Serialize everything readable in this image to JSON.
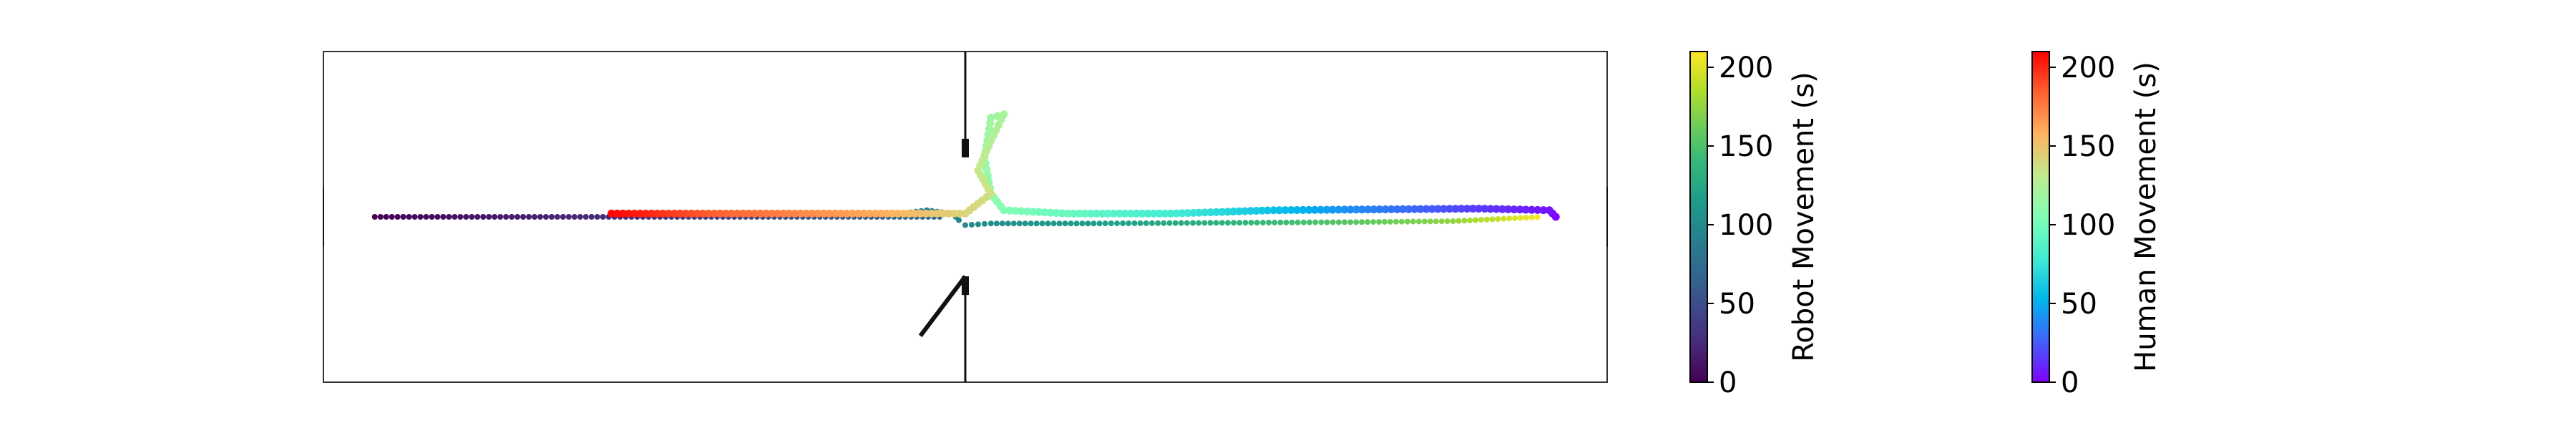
{
  "chart_data": {
    "type": "scatter",
    "title": "",
    "xlabel": "",
    "ylabel": "",
    "axis_ticks_visible": false,
    "grid": false,
    "series": [
      {
        "name": "",
        "colorbar": "robot",
        "colormap": "viridis",
        "points": [
          {
            "x": 0.04,
            "y": 0.5,
            "t": 0
          },
          {
            "x": 0.16,
            "y": 0.5,
            "t": 18
          },
          {
            "x": 0.28,
            "y": 0.5,
            "t": 36
          },
          {
            "x": 0.4,
            "y": 0.5,
            "t": 55
          },
          {
            "x": 0.48,
            "y": 0.5,
            "t": 68
          },
          {
            "x": 0.44,
            "y": 0.495,
            "t": 80
          },
          {
            "x": 0.47,
            "y": 0.48,
            "t": 88
          },
          {
            "x": 0.49,
            "y": 0.49,
            "t": 92
          },
          {
            "x": 0.495,
            "y": 0.51,
            "t": 96
          },
          {
            "x": 0.5,
            "y": 0.525,
            "t": 100
          },
          {
            "x": 0.52,
            "y": 0.52,
            "t": 104
          },
          {
            "x": 0.6,
            "y": 0.52,
            "t": 116
          },
          {
            "x": 0.7,
            "y": 0.518,
            "t": 134
          },
          {
            "x": 0.8,
            "y": 0.516,
            "t": 155
          },
          {
            "x": 0.88,
            "y": 0.513,
            "t": 175
          },
          {
            "x": 0.95,
            "y": 0.5,
            "t": 210
          }
        ]
      },
      {
        "name": "",
        "colorbar": "human",
        "colormap": "rainbow",
        "points": [
          {
            "x": 0.96,
            "y": 0.5,
            "t": 0
          },
          {
            "x": 0.955,
            "y": 0.48,
            "t": 5
          },
          {
            "x": 0.9,
            "y": 0.475,
            "t": 15
          },
          {
            "x": 0.8,
            "y": 0.478,
            "t": 40
          },
          {
            "x": 0.74,
            "y": 0.48,
            "t": 58
          },
          {
            "x": 0.66,
            "y": 0.49,
            "t": 80
          },
          {
            "x": 0.58,
            "y": 0.49,
            "t": 95
          },
          {
            "x": 0.53,
            "y": 0.48,
            "t": 105
          },
          {
            "x": 0.52,
            "y": 0.43,
            "t": 110
          },
          {
            "x": 0.515,
            "y": 0.32,
            "t": 115
          },
          {
            "x": 0.52,
            "y": 0.2,
            "t": 118
          },
          {
            "x": 0.53,
            "y": 0.19,
            "t": 121
          },
          {
            "x": 0.52,
            "y": 0.27,
            "t": 126
          },
          {
            "x": 0.51,
            "y": 0.36,
            "t": 132
          },
          {
            "x": 0.52,
            "y": 0.43,
            "t": 136
          },
          {
            "x": 0.5,
            "y": 0.49,
            "t": 142
          },
          {
            "x": 0.43,
            "y": 0.49,
            "t": 160
          },
          {
            "x": 0.3,
            "y": 0.49,
            "t": 185
          },
          {
            "x": 0.22,
            "y": 0.49,
            "t": 210
          }
        ]
      }
    ],
    "colorbars": [
      {
        "id": "robot",
        "label": "Robot Movement (s)",
        "colormap": "viridis",
        "range": [
          0,
          210
        ],
        "ticks": [
          "0",
          "50",
          "100",
          "150",
          "200"
        ]
      },
      {
        "id": "human",
        "label": "Human Movement (s)",
        "colormap": "rainbow",
        "range": [
          0,
          210
        ],
        "ticks": [
          "0",
          "50",
          "100",
          "150",
          "200"
        ]
      }
    ],
    "environment": {
      "walls": [
        {
          "x1": 0.5,
          "y1": 0.0,
          "x2": 0.5,
          "y2": 0.32
        },
        {
          "x1": 0.5,
          "y1": 0.68,
          "x2": 0.5,
          "y2": 1.0
        }
      ],
      "door": {
        "x1": 0.465,
        "y1": 0.86,
        "x2": 0.5,
        "y2": 0.68
      }
    }
  }
}
